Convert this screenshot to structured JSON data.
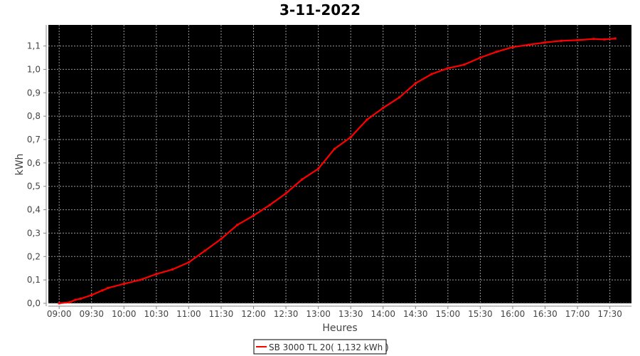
{
  "chart_data": {
    "type": "line",
    "title": "3-11-2022",
    "xlabel": "Heures",
    "ylabel": "kWh",
    "xlim": [
      "08:50",
      "17:50"
    ],
    "ylim": [
      0,
      1.19
    ],
    "grid": true,
    "legend_position": "bottom",
    "background_color": "#000000",
    "x_ticks": [
      "09:00",
      "09:30",
      "10:00",
      "10:30",
      "11:00",
      "11:30",
      "12:00",
      "12:30",
      "13:00",
      "13:30",
      "14:00",
      "14:30",
      "15:00",
      "15:30",
      "16:00",
      "16:30",
      "17:00",
      "17:30"
    ],
    "y_ticks": [
      "0,0",
      "0,1",
      "0,2",
      "0,3",
      "0,4",
      "0,5",
      "0,6",
      "0,7",
      "0,8",
      "0,9",
      "1,0",
      "1,1"
    ],
    "series": [
      {
        "name": "SB 3000 TL 20( 1,132 kWh )",
        "color": "#ff0000",
        "x": [
          "09:00",
          "09:10",
          "09:15",
          "09:20",
          "09:30",
          "09:40",
          "09:45",
          "10:00",
          "10:15",
          "10:30",
          "10:45",
          "11:00",
          "11:15",
          "11:30",
          "11:45",
          "12:00",
          "12:15",
          "12:30",
          "12:45",
          "13:00",
          "13:15",
          "13:30",
          "13:45",
          "14:00",
          "14:15",
          "14:30",
          "14:45",
          "15:00",
          "15:15",
          "15:30",
          "15:45",
          "16:00",
          "16:15",
          "16:30",
          "16:45",
          "17:00",
          "17:15",
          "17:25",
          "17:35"
        ],
        "y": [
          0.0,
          0.005,
          0.015,
          0.02,
          0.035,
          0.055,
          0.065,
          0.083,
          0.1,
          0.125,
          0.145,
          0.175,
          0.225,
          0.275,
          0.335,
          0.375,
          0.42,
          0.47,
          0.53,
          0.575,
          0.66,
          0.71,
          0.785,
          0.835,
          0.88,
          0.94,
          0.98,
          1.005,
          1.02,
          1.05,
          1.075,
          1.095,
          1.105,
          1.115,
          1.122,
          1.125,
          1.13,
          1.128,
          1.132
        ]
      }
    ]
  }
}
